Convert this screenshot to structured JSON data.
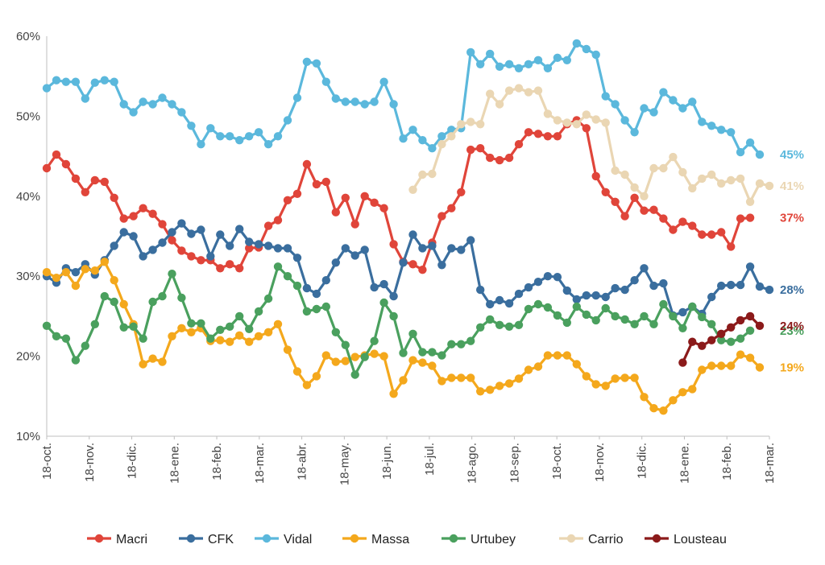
{
  "chart_data": {
    "type": "line",
    "title": "",
    "xlabel": "",
    "ylabel": "",
    "ylim": [
      10,
      60
    ],
    "y_ticks": [
      "10%",
      "20%",
      "30%",
      "40%",
      "50%",
      "60%"
    ],
    "x_ticks": [
      "18-oct.",
      "18-nov.",
      "18-dic.",
      "18-ene.",
      "18-feb.",
      "18-mar.",
      "18-abr.",
      "18-may.",
      "18-jun.",
      "18-jul.",
      "18-ago.",
      "18-sep.",
      "18-oct.",
      "18-nov.",
      "18-dic.",
      "18-ene.",
      "18-feb.",
      "18-mar."
    ],
    "grid": false,
    "legend_position": "bottom",
    "series": [
      {
        "name": "Macri",
        "color": "#E0453A",
        "end_label": "37%",
        "values": [
          43.5,
          45.2,
          44,
          42.2,
          40.5,
          42,
          41.8,
          39.8,
          37.2,
          37.5,
          38.5,
          37.8,
          36.5,
          34.5,
          33.2,
          32.5,
          32,
          32,
          31,
          31.5,
          31,
          33.5,
          33.6,
          36.3,
          37,
          39.5,
          40.3,
          44,
          41.5,
          41.8,
          38,
          39.8,
          36.5,
          40,
          39.2,
          38.5,
          34,
          31.8,
          31.5,
          30.8,
          34.2,
          37.5,
          38.5,
          40.5,
          45.8,
          46,
          44.8,
          44.5,
          44.8,
          46.5,
          48,
          47.8,
          47.5,
          47.5,
          49,
          49.5,
          48.5,
          42.5,
          40.5,
          39.3,
          37.5,
          39.8,
          38.2,
          38.3,
          37.2,
          35.8,
          36.8,
          36.3,
          35.2,
          35.2,
          35.5,
          33.7,
          37.2,
          37.3
        ]
      },
      {
        "name": "CFK",
        "color": "#3A6E9E",
        "end_label": "28%",
        "values": [
          30,
          29.2,
          31,
          30.5,
          31.5,
          30.2,
          32,
          33.8,
          35.5,
          35,
          32.5,
          33.3,
          34.2,
          35.5,
          36.6,
          35.3,
          35.8,
          32.5,
          35.2,
          33.8,
          35.9,
          34.3,
          34,
          33.8,
          33.5,
          33.5,
          32.3,
          28.5,
          27.8,
          29.5,
          31.7,
          33.5,
          32.6,
          33.3,
          28.6,
          29,
          27.5,
          31.7,
          35.2,
          33.5,
          33.8,
          31.4,
          33.5,
          33.3,
          34.5,
          28.3,
          26.5,
          27,
          26.6,
          27.8,
          28.6,
          29.3,
          30,
          29.9,
          28.2,
          27.1,
          27.6,
          27.6,
          27.4,
          28.5,
          28.3,
          29.5,
          31,
          28.8,
          29.1,
          25.1,
          25.5,
          26.2,
          25.3,
          27.4,
          28.8,
          28.9,
          28.9,
          31.2,
          28.7,
          28.3
        ]
      },
      {
        "name": "Vidal",
        "color": "#5BB8DC",
        "end_label": "45%",
        "values": [
          53.5,
          54.5,
          54.3,
          54.3,
          52.2,
          54.2,
          54.5,
          54.3,
          51.5,
          50.5,
          51.8,
          51.5,
          52.3,
          51.5,
          50.5,
          48.8,
          46.5,
          48.5,
          47.5,
          47.5,
          47,
          47.5,
          48,
          46.5,
          47.5,
          49.5,
          52.3,
          56.8,
          56.6,
          54.3,
          52.2,
          51.8,
          51.8,
          51.5,
          51.8,
          54.3,
          51.5,
          47.2,
          48.3,
          47,
          46,
          47.5,
          48.3,
          48.5,
          58,
          56.5,
          57.8,
          56.2,
          56.5,
          56,
          56.5,
          57,
          56,
          57.3,
          57,
          59.1,
          58.4,
          57.7,
          52.5,
          51.5,
          49.5,
          48,
          51,
          50.5,
          53,
          52,
          51,
          51.8,
          49.3,
          48.8,
          48.3,
          48,
          45.5,
          46.7,
          45.2
        ]
      },
      {
        "name": "Massa",
        "color": "#F4A81C",
        "end_label": "19%",
        "values": [
          30.5,
          29.8,
          30.5,
          28.8,
          30.9,
          30.7,
          31.8,
          29.5,
          26.5,
          24,
          19,
          19.7,
          19.3,
          22.5,
          23.5,
          23,
          23.5,
          21.9,
          22,
          21.8,
          22.6,
          21.8,
          22.5,
          23,
          24,
          20.8,
          18.1,
          16.4,
          17.5,
          20.1,
          19.3,
          19.4,
          19.9,
          20.1,
          20.3,
          20,
          15.3,
          17,
          19.5,
          19.2,
          18.8,
          16.9,
          17.3,
          17.3,
          17.3,
          15.6,
          15.8,
          16.3,
          16.6,
          17.2,
          18.3,
          18.7,
          20.1,
          20.1,
          20.1,
          19,
          17.5,
          16.5,
          16.3,
          17.2,
          17.3,
          17.3,
          14.9,
          13.5,
          13.2,
          14.5,
          15.5,
          15.9,
          18.3,
          18.8,
          18.8,
          18.8,
          20.2,
          19.8,
          18.6
        ]
      },
      {
        "name": "Urtubey",
        "color": "#4AA05E",
        "end_label": "23%",
        "values": [
          23.8,
          22.5,
          22.2,
          19.5,
          21.3,
          24,
          27.5,
          26.8,
          23.6,
          23.7,
          22.2,
          26.8,
          27.5,
          30.3,
          27.3,
          24.1,
          24.1,
          22.2,
          23.3,
          23.7,
          25,
          23.4,
          25.6,
          27.2,
          31.2,
          30,
          28.8,
          25.6,
          25.9,
          26.2,
          23,
          21.4,
          17.7,
          19.9,
          21.9,
          26.7,
          25,
          20.4,
          22.8,
          20.5,
          20.5,
          20.1,
          21.5,
          21.5,
          21.9,
          23.6,
          24.6,
          23.9,
          23.7,
          23.9,
          25.9,
          26.5,
          26.1,
          25.1,
          24.2,
          26.2,
          25.2,
          24.5,
          26,
          25,
          24.6,
          24,
          25,
          24,
          26.5,
          25,
          23.5,
          26.2,
          24.9,
          24,
          22,
          21.8,
          22.2,
          23.2
        ]
      },
      {
        "name": "Carrio",
        "color": "#EAD6B3",
        "end_label": "41%",
        "values": [
          null,
          null,
          null,
          null,
          null,
          null,
          null,
          null,
          null,
          null,
          null,
          null,
          null,
          null,
          null,
          null,
          null,
          null,
          null,
          null,
          null,
          null,
          null,
          null,
          null,
          null,
          null,
          null,
          null,
          null,
          null,
          null,
          null,
          null,
          null,
          null,
          null,
          null,
          40.8,
          42.7,
          42.8,
          46.5,
          47.5,
          49,
          49.3,
          49,
          52.8,
          51.5,
          53.2,
          53.5,
          53,
          53.2,
          50.3,
          49.5,
          49.2,
          49,
          50.2,
          49.6,
          49.2,
          43.2,
          42.7,
          41.1,
          40,
          43.5,
          43.5,
          44.9,
          43,
          41,
          42.2,
          42.7,
          41.6,
          42,
          42.2,
          39.3,
          41.6,
          41.3
        ]
      },
      {
        "name": "Lousteau",
        "color": "#8B1A1A",
        "end_label": "24%",
        "values": [
          null,
          null,
          null,
          null,
          null,
          null,
          null,
          null,
          null,
          null,
          null,
          null,
          null,
          null,
          null,
          null,
          null,
          null,
          null,
          null,
          null,
          null,
          null,
          null,
          null,
          null,
          null,
          null,
          null,
          null,
          null,
          null,
          null,
          null,
          null,
          null,
          null,
          null,
          null,
          null,
          null,
          null,
          null,
          null,
          null,
          null,
          null,
          null,
          null,
          null,
          null,
          null,
          null,
          null,
          null,
          null,
          null,
          null,
          null,
          null,
          null,
          null,
          null,
          null,
          null,
          null,
          19.2,
          21.8,
          21.3,
          22,
          22.8,
          23.6,
          24.5,
          25,
          23.8
        ]
      }
    ]
  }
}
